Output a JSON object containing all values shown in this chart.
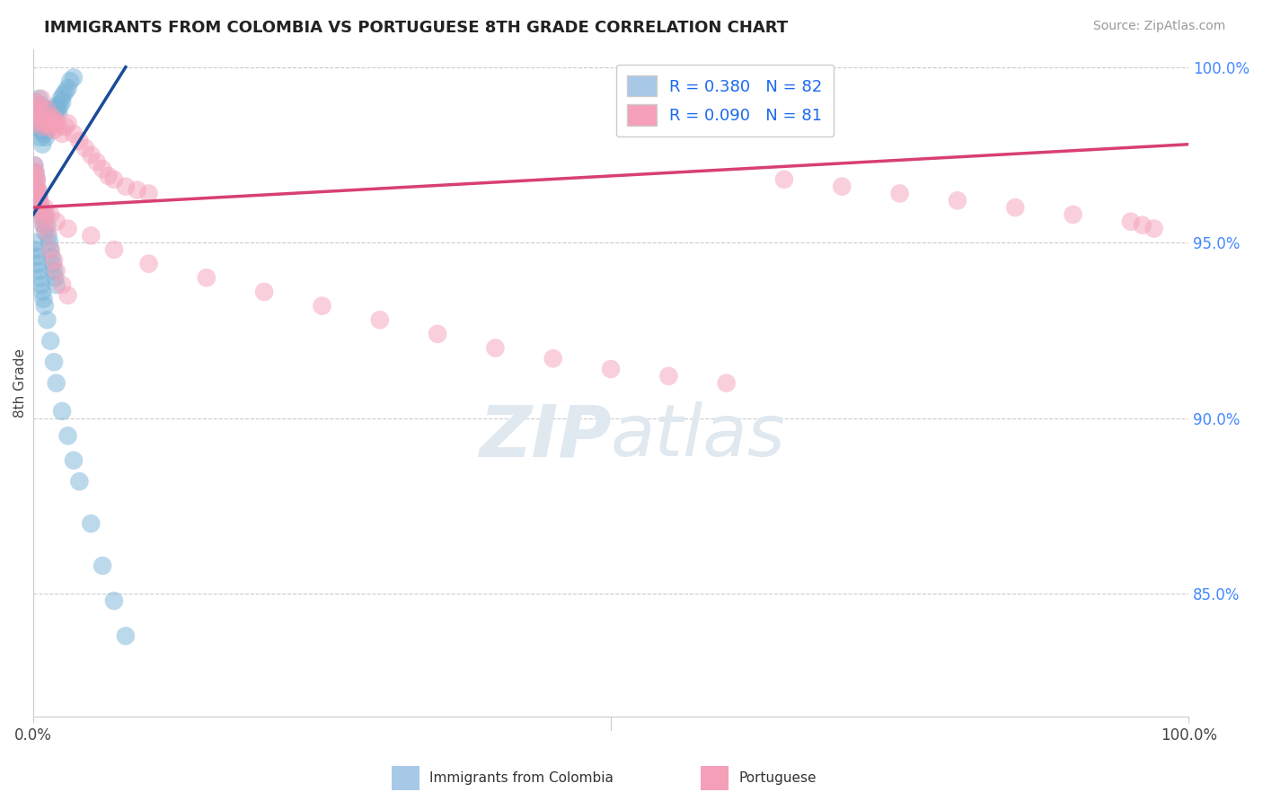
{
  "title": "IMMIGRANTS FROM COLOMBIA VS PORTUGUESE 8TH GRADE CORRELATION CHART",
  "source_text": "Source: ZipAtlas.com",
  "ylabel_left": "8th Grade",
  "legend_entry1_label": "R = 0.380   N = 82",
  "legend_entry2_label": "R = 0.090   N = 81",
  "legend_entry1_color": "#a8c8e8",
  "legend_entry2_color": "#f4a0b8",
  "blue_color": "#7ab4d8",
  "pink_color": "#f4a0b8",
  "trend_blue": "#1a4a9a",
  "trend_pink": "#d84070",
  "background_color": "#ffffff",
  "grid_color": "#cccccc",
  "watermark_color": "#e0e8f0",
  "right_ytick_labels": [
    "85.0%",
    "90.0%",
    "95.0%",
    "100.0%"
  ],
  "right_ytick_values": [
    0.85,
    0.9,
    0.95,
    1.0
  ],
  "xlim": [
    0.0,
    1.0
  ],
  "ylim": [
    0.815,
    1.005
  ],
  "blue_scatter_x": [
    0.001,
    0.002,
    0.002,
    0.003,
    0.003,
    0.004,
    0.004,
    0.005,
    0.005,
    0.006,
    0.006,
    0.007,
    0.007,
    0.008,
    0.008,
    0.009,
    0.01,
    0.01,
    0.011,
    0.012,
    0.012,
    0.013,
    0.014,
    0.015,
    0.015,
    0.016,
    0.017,
    0.018,
    0.019,
    0.02,
    0.021,
    0.022,
    0.023,
    0.024,
    0.025,
    0.026,
    0.028,
    0.03,
    0.032,
    0.035,
    0.001,
    0.002,
    0.003,
    0.004,
    0.005,
    0.006,
    0.007,
    0.008,
    0.009,
    0.01,
    0.011,
    0.012,
    0.013,
    0.014,
    0.015,
    0.016,
    0.017,
    0.018,
    0.019,
    0.02,
    0.001,
    0.002,
    0.003,
    0.004,
    0.005,
    0.006,
    0.007,
    0.008,
    0.009,
    0.01,
    0.012,
    0.015,
    0.018,
    0.02,
    0.025,
    0.03,
    0.035,
    0.04,
    0.05,
    0.06,
    0.07,
    0.08
  ],
  "blue_scatter_y": [
    0.986,
    0.982,
    0.99,
    0.985,
    0.988,
    0.983,
    0.987,
    0.984,
    0.991,
    0.98,
    0.986,
    0.982,
    0.989,
    0.978,
    0.985,
    0.983,
    0.981,
    0.987,
    0.98,
    0.984,
    0.982,
    0.983,
    0.985,
    0.987,
    0.984,
    0.986,
    0.988,
    0.985,
    0.987,
    0.989,
    0.988,
    0.987,
    0.989,
    0.991,
    0.99,
    0.992,
    0.993,
    0.994,
    0.996,
    0.997,
    0.972,
    0.97,
    0.968,
    0.965,
    0.963,
    0.961,
    0.959,
    0.957,
    0.955,
    0.953,
    0.958,
    0.955,
    0.952,
    0.95,
    0.948,
    0.946,
    0.944,
    0.942,
    0.94,
    0.938,
    0.95,
    0.948,
    0.946,
    0.944,
    0.942,
    0.94,
    0.938,
    0.936,
    0.934,
    0.932,
    0.928,
    0.922,
    0.916,
    0.91,
    0.902,
    0.895,
    0.888,
    0.882,
    0.87,
    0.858,
    0.848,
    0.838
  ],
  "pink_scatter_x": [
    0.001,
    0.002,
    0.003,
    0.004,
    0.005,
    0.006,
    0.007,
    0.008,
    0.009,
    0.01,
    0.012,
    0.013,
    0.014,
    0.015,
    0.016,
    0.017,
    0.018,
    0.019,
    0.02,
    0.022,
    0.025,
    0.028,
    0.03,
    0.035,
    0.04,
    0.045,
    0.05,
    0.055,
    0.06,
    0.065,
    0.07,
    0.08,
    0.09,
    0.1,
    0.001,
    0.002,
    0.003,
    0.004,
    0.005,
    0.006,
    0.007,
    0.008,
    0.009,
    0.01,
    0.012,
    0.015,
    0.018,
    0.02,
    0.025,
    0.03,
    0.05,
    0.07,
    0.1,
    0.15,
    0.2,
    0.25,
    0.3,
    0.35,
    0.4,
    0.45,
    0.5,
    0.55,
    0.6,
    0.65,
    0.7,
    0.75,
    0.8,
    0.85,
    0.9,
    0.95,
    0.96,
    0.97,
    0.001,
    0.002,
    0.003,
    0.004,
    0.005,
    0.01,
    0.015,
    0.02,
    0.03
  ],
  "pink_scatter_y": [
    0.988,
    0.984,
    0.99,
    0.986,
    0.989,
    0.985,
    0.991,
    0.983,
    0.987,
    0.984,
    0.988,
    0.984,
    0.985,
    0.983,
    0.986,
    0.984,
    0.982,
    0.985,
    0.984,
    0.983,
    0.981,
    0.983,
    0.984,
    0.981,
    0.979,
    0.977,
    0.975,
    0.973,
    0.971,
    0.969,
    0.968,
    0.966,
    0.965,
    0.964,
    0.972,
    0.97,
    0.968,
    0.965,
    0.963,
    0.961,
    0.959,
    0.957,
    0.955,
    0.958,
    0.953,
    0.948,
    0.945,
    0.942,
    0.938,
    0.935,
    0.952,
    0.948,
    0.944,
    0.94,
    0.936,
    0.932,
    0.928,
    0.924,
    0.92,
    0.917,
    0.914,
    0.912,
    0.91,
    0.968,
    0.966,
    0.964,
    0.962,
    0.96,
    0.958,
    0.956,
    0.955,
    0.954,
    0.97,
    0.968,
    0.966,
    0.964,
    0.962,
    0.96,
    0.958,
    0.956,
    0.954
  ],
  "blue_trend_x": [
    0.0,
    0.08
  ],
  "blue_trend_y": [
    0.958,
    1.0
  ],
  "pink_trend_x": [
    0.0,
    1.0
  ],
  "pink_trend_y": [
    0.96,
    0.978
  ]
}
